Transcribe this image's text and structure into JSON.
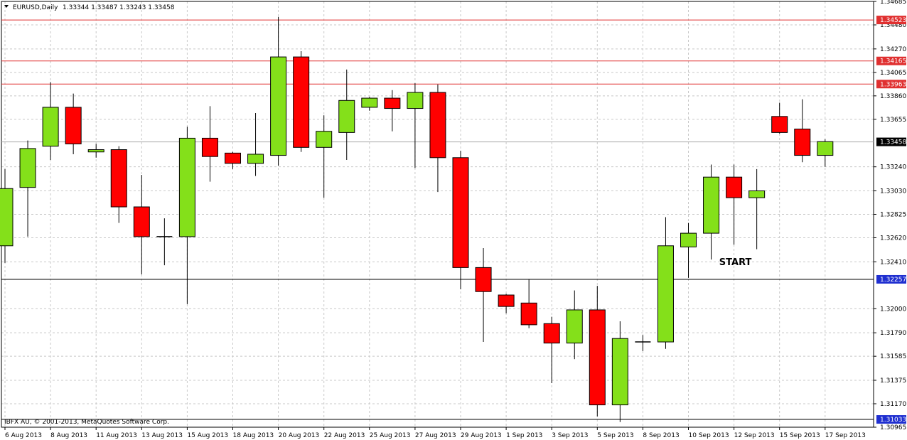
{
  "header": {
    "symbol_label": "EURUSD,Daily",
    "ohlc": "1.33344 1.33487 1.33243 1.33458"
  },
  "footer": {
    "copyright": "IBFX AU, © 2001-2013, MetaQuotes Software Corp."
  },
  "colors": {
    "bull": "#84e01a",
    "bear": "#ff0000",
    "resistance_line": "#e03030",
    "support_line": "#000000",
    "grid": "#c8c8c8",
    "resistance_badge": "#e03030",
    "support_badge": "#1f2fd0",
    "current_badge": "#000000"
  },
  "chart_data": {
    "type": "candlestick",
    "ylim": [
      1.30965,
      1.34685
    ],
    "y_ticks": [
      "1.34685",
      "1.34480",
      "1.34270",
      "1.34065",
      "1.33860",
      "1.33655",
      "1.33240",
      "1.33030",
      "1.32825",
      "1.32620",
      "1.32410",
      "1.32000",
      "1.31790",
      "1.31585",
      "1.31375",
      "1.31170",
      "1.30965"
    ],
    "x_labels": [
      "6 Aug 2013",
      "8 Aug 2013",
      "11 Aug 2013",
      "13 Aug 2013",
      "15 Aug 2013",
      "18 Aug 2013",
      "20 Aug 2013",
      "22 Aug 2013",
      "25 Aug 2013",
      "27 Aug 2013",
      "29 Aug 2013",
      "1 Sep 2013",
      "3 Sep 2013",
      "5 Sep 2013",
      "8 Sep 2013",
      "10 Sep 2013",
      "12 Sep 2013",
      "15 Sep 2013",
      "17 Sep 2013"
    ],
    "candles": [
      {
        "o": 1.3255,
        "h": 1.3322,
        "l": 1.324,
        "c": 1.3305
      },
      {
        "o": 1.3306,
        "h": 1.3347,
        "l": 1.3263,
        "c": 1.334
      },
      {
        "o": 1.3342,
        "h": 1.3398,
        "l": 1.333,
        "c": 1.3376
      },
      {
        "o": 1.3376,
        "h": 1.3388,
        "l": 1.3335,
        "c": 1.3344
      },
      {
        "o": 1.3337,
        "h": 1.3344,
        "l": 1.3332,
        "c": 1.3339
      },
      {
        "o": 1.3339,
        "h": 1.3342,
        "l": 1.3275,
        "c": 1.3289
      },
      {
        "o": 1.3289,
        "h": 1.3317,
        "l": 1.323,
        "c": 1.3263
      },
      {
        "o": 1.3263,
        "h": 1.3279,
        "l": 1.3238,
        "c": 1.3263
      },
      {
        "o": 1.3263,
        "h": 1.3359,
        "l": 1.3204,
        "c": 1.3349
      },
      {
        "o": 1.3349,
        "h": 1.3377,
        "l": 1.3311,
        "c": 1.3333
      },
      {
        "o": 1.3336,
        "h": 1.3337,
        "l": 1.3322,
        "c": 1.3327
      },
      {
        "o": 1.3327,
        "h": 1.3371,
        "l": 1.3316,
        "c": 1.3335
      },
      {
        "o": 1.3334,
        "h": 1.3455,
        "l": 1.3325,
        "c": 1.342
      },
      {
        "o": 1.342,
        "h": 1.3425,
        "l": 1.3337,
        "c": 1.3341
      },
      {
        "o": 1.3341,
        "h": 1.3369,
        "l": 1.3297,
        "c": 1.3355
      },
      {
        "o": 1.3354,
        "h": 1.3409,
        "l": 1.333,
        "c": 1.3382
      },
      {
        "o": 1.3376,
        "h": 1.3385,
        "l": 1.3373,
        "c": 1.3384
      },
      {
        "o": 1.3384,
        "h": 1.3391,
        "l": 1.3355,
        "c": 1.3375
      },
      {
        "o": 1.3375,
        "h": 1.3397,
        "l": 1.3323,
        "c": 1.3389
      },
      {
        "o": 1.3389,
        "h": 1.3396,
        "l": 1.3302,
        "c": 1.3332
      },
      {
        "o": 1.3332,
        "h": 1.3338,
        "l": 1.3217,
        "c": 1.3236
      },
      {
        "o": 1.3236,
        "h": 1.3253,
        "l": 1.3171,
        "c": 1.3215
      },
      {
        "o": 1.3212,
        "h": 1.3213,
        "l": 1.3196,
        "c": 1.3202
      },
      {
        "o": 1.3205,
        "h": 1.3226,
        "l": 1.3183,
        "c": 1.3186
      },
      {
        "o": 1.3187,
        "h": 1.3193,
        "l": 1.3135,
        "c": 1.317
      },
      {
        "o": 1.317,
        "h": 1.3216,
        "l": 1.3156,
        "c": 1.3199
      },
      {
        "o": 1.3199,
        "h": 1.322,
        "l": 1.3106,
        "c": 1.3116
      },
      {
        "o": 1.3116,
        "h": 1.3189,
        "l": 1.3101,
        "c": 1.3174
      },
      {
        "o": 1.3171,
        "h": 1.3177,
        "l": 1.3163,
        "c": 1.3171
      },
      {
        "o": 1.3171,
        "h": 1.328,
        "l": 1.3165,
        "c": 1.3255
      },
      {
        "o": 1.3254,
        "h": 1.3275,
        "l": 1.3227,
        "c": 1.3266
      },
      {
        "o": 1.3266,
        "h": 1.3326,
        "l": 1.3243,
        "c": 1.3315
      },
      {
        "o": 1.3315,
        "h": 1.3326,
        "l": 1.3256,
        "c": 1.3297
      },
      {
        "o": 1.3297,
        "h": 1.3322,
        "l": 1.3252,
        "c": 1.3303
      },
      {
        "o": 1.3368,
        "h": 1.338,
        "l": 1.3353,
        "c": 1.3354
      },
      {
        "o": 1.3357,
        "h": 1.3383,
        "l": 1.3328,
        "c": 1.3334
      },
      {
        "o": 1.3334,
        "h": 1.3348,
        "l": 1.3324,
        "c": 1.3346
      }
    ],
    "horizontal_lines": [
      {
        "price": 1.34523,
        "label": "1.34523",
        "kind": "resistance"
      },
      {
        "price": 1.34165,
        "label": "1.34165",
        "kind": "resistance"
      },
      {
        "price": 1.33963,
        "label": "1.33963",
        "kind": "resistance"
      },
      {
        "price": 1.32257,
        "label": "1.32257",
        "kind": "support"
      },
      {
        "price": 1.31033,
        "label": "1.31033",
        "kind": "support"
      }
    ],
    "current_price": {
      "price": 1.33458,
      "label": "1.33458"
    },
    "annotations": [
      {
        "text": "START",
        "price": 1.3238,
        "candle": 32
      }
    ]
  }
}
